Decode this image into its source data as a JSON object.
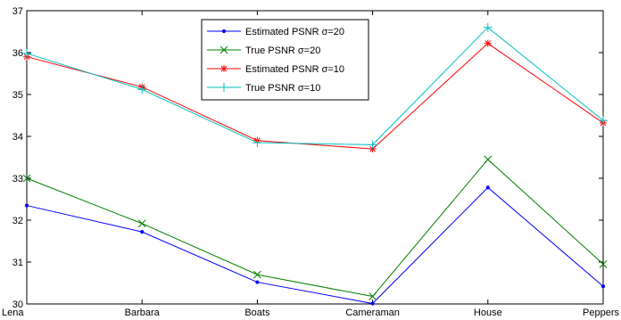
{
  "chart_data": {
    "type": "line",
    "title": "",
    "xlabel": "",
    "ylabel": "",
    "categories": [
      "Lena",
      "Barbara",
      "Boats",
      "Cameraman",
      "House",
      "Peppers"
    ],
    "ylim": [
      30,
      37
    ],
    "yticks": [
      30,
      31,
      32,
      33,
      34,
      35,
      36,
      37
    ],
    "grid": false,
    "legend_position": "top-center",
    "series": [
      {
        "name": "Estimated PSNR σ=20",
        "color": "#0000ff",
        "marker": "dot",
        "values": [
          32.35,
          31.72,
          30.52,
          30.01,
          32.78,
          30.42
        ]
      },
      {
        "name": "True PSNR σ=20",
        "color": "#008000",
        "marker": "x",
        "values": [
          33.0,
          31.92,
          30.7,
          30.18,
          33.45,
          30.95
        ]
      },
      {
        "name": "Estimated PSNR σ=10",
        "color": "#ff0000",
        "marker": "star",
        "values": [
          35.9,
          35.18,
          33.9,
          33.7,
          36.22,
          34.32
        ]
      },
      {
        "name": "True PSNR σ=10",
        "color": "#00bfbf",
        "marker": "plus",
        "values": [
          35.98,
          35.12,
          33.85,
          33.8,
          36.6,
          34.38
        ]
      }
    ]
  }
}
